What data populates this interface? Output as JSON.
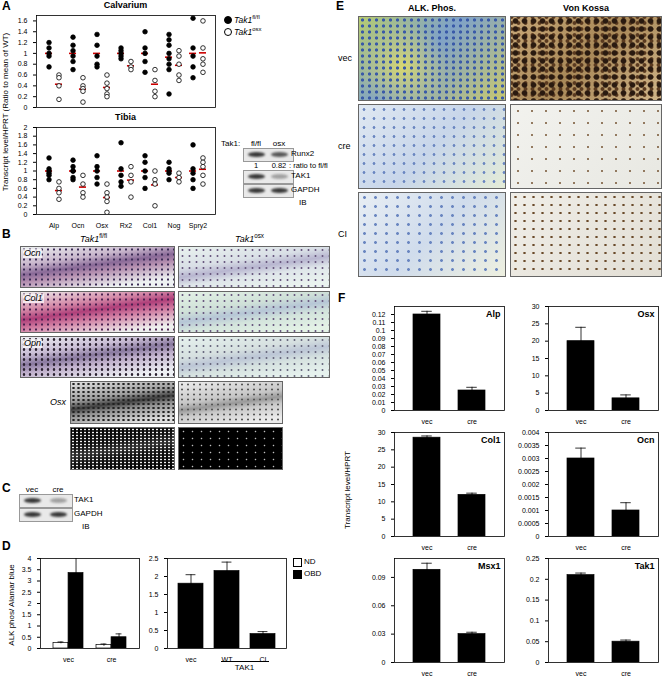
{
  "chart_data": [
    {
      "type": "scatter",
      "title": "Calvarium",
      "y_label": "Transcript level/HPRT (Ratio to mean of WT)",
      "categories": [
        "Alp",
        "Ocn",
        "Osx",
        "Rx2",
        "Col1",
        "Nog",
        "Spry2"
      ],
      "series": [
        {
          "name": "Tak1fl/fl",
          "color": "#000000",
          "marker": "filled",
          "values": [
            [
              1.2,
              1.1,
              1.0,
              0.95,
              0.75
            ],
            [
              1.3,
              1.15,
              1.05,
              0.95,
              0.85,
              0.7
            ],
            [
              1.35,
              1.15,
              0.95,
              0.8,
              0.75
            ],
            [
              1.1,
              1.05,
              1.0,
              0.95,
              0.9
            ],
            [
              1.4,
              1.1,
              1.0,
              0.85,
              0.65
            ],
            [
              1.35,
              1.25,
              1.15,
              1.0,
              0.9,
              0.8,
              0.7,
              0.25
            ],
            [
              1.65,
              1.1,
              0.95,
              0.75,
              0.55
            ]
          ],
          "means": [
            1,
            1,
            1,
            1,
            1,
            0.93,
            1
          ]
        },
        {
          "name": "Tak1osx",
          "color": "#000000",
          "marker": "open",
          "values": [
            [
              0.6,
              0.55,
              0.4,
              0.15
            ],
            [
              0.55,
              0.4,
              0.35,
              0.3,
              0.1
            ],
            [
              0.6,
              0.45,
              0.35,
              0.25,
              0.2
            ],
            [
              0.85,
              0.75,
              0.7
            ],
            [
              0.7,
              0.5,
              0.3,
              0.2
            ],
            [
              1.05,
              0.95,
              0.8,
              0.6,
              0.5
            ],
            [
              1.6,
              1.1,
              0.9,
              0.8,
              0.65
            ]
          ],
          "means": [
            0.43,
            0.34,
            0.37,
            0.77,
            0.43,
            0.78,
            1.01
          ]
        }
      ],
      "ylim": [
        0,
        1.7
      ],
      "yticks": [
        0,
        0.2,
        0.4,
        0.6,
        0.8,
        1,
        1.2,
        1.4,
        1.6
      ],
      "tick_labels": "y",
      "legend": "top-right"
    },
    {
      "type": "scatter",
      "title": "Tibia",
      "categories": [
        "Alp",
        "Ocn",
        "Osx",
        "Rx2",
        "Col1",
        "Nog",
        "Spry2"
      ],
      "series": [
        {
          "name": "Tak1fl/fl",
          "color": "#000000",
          "marker": "filled",
          "values": [
            [
              1.3,
              1.05,
              1.0,
              0.95,
              0.9,
              0.8
            ],
            [
              1.25,
              1.1,
              1.0,
              1.0,
              0.85,
              0.8
            ],
            [
              1.35,
              1.1,
              1.0,
              0.85,
              0.7
            ],
            [
              1.65,
              1.05,
              0.9,
              0.75,
              0.65
            ],
            [
              1.35,
              1.2,
              1.0,
              0.85,
              0.6
            ],
            [
              1.2,
              1.05,
              1.0,
              0.95,
              0.8
            ],
            [
              1.6,
              1.05,
              0.95,
              0.8,
              0.6
            ]
          ],
          "means": [
            1,
            1,
            1,
            1,
            1,
            1,
            1
          ]
        },
        {
          "name": "Tak1osx",
          "color": "#000000",
          "marker": "open",
          "values": [
            [
              0.75,
              0.6,
              0.5,
              0.35
            ],
            [
              0.9,
              0.7,
              0.5,
              0.4
            ],
            [
              0.7,
              0.5,
              0.4,
              0.3,
              0.05
            ],
            [
              1.1,
              0.9,
              0.75,
              0.4
            ],
            [
              1.0,
              0.8,
              0.7,
              0.2
            ],
            [
              0.95,
              0.85,
              0.75
            ],
            [
              1.3,
              1.2,
              1.1,
              0.9,
              0.7
            ]
          ],
          "means": [
            0.55,
            0.63,
            0.39,
            0.79,
            0.68,
            0.85,
            1.04
          ]
        }
      ],
      "ylim": [
        0,
        2
      ],
      "yticks": [
        0,
        0.2,
        0.4,
        0.6,
        0.8,
        1,
        1.2,
        1.4,
        1.6,
        1.8,
        2
      ]
    },
    {
      "type": "bar",
      "y_label": "ALK phos/ Alamar blue",
      "categories": [
        "vec",
        "cre"
      ],
      "series": [
        {
          "name": "ND",
          "color": "#ffffff",
          "values": [
            0.25,
            0.15
          ],
          "errors": [
            0.04,
            0.05
          ]
        },
        {
          "name": "OBD",
          "color": "#000000",
          "values": [
            3.35,
            0.5
          ],
          "errors": [
            0.7,
            0.15
          ]
        }
      ],
      "ylim": [
        0,
        4
      ],
      "yticks": [
        0,
        0.5,
        1,
        1.5,
        2,
        2.5,
        3,
        3.5,
        4
      ],
      "legend": "top-right"
    },
    {
      "type": "bar",
      "categories": [
        "vec",
        "WT",
        "CI"
      ],
      "x_group": {
        "label": "TAK1",
        "categories": [
          "WT",
          "CI"
        ]
      },
      "color": "#000000",
      "values": [
        1.8,
        2.15,
        0.4
      ],
      "errors": [
        0.25,
        0.25,
        0.07
      ],
      "ylim": [
        0,
        2.5
      ],
      "yticks": [
        0,
        0.5,
        1,
        1.5,
        2,
        2.5
      ]
    },
    {
      "type": "bar",
      "title": "Alp",
      "categories": [
        "vec",
        "cre"
      ],
      "color": "#000000",
      "values": [
        0.12,
        0.025
      ],
      "errors": [
        0.004,
        0.004
      ],
      "ylim": [
        0,
        0.13
      ],
      "yticks": [
        0,
        0.01,
        0.02,
        0.03,
        0.04,
        0.05,
        0.06,
        0.07,
        0.08,
        0.09,
        0.1,
        0.11,
        0.12
      ]
    },
    {
      "type": "bar",
      "title": "Osx",
      "categories": [
        "vec",
        "cre"
      ],
      "color": "#000000",
      "values": [
        20,
        3.5
      ],
      "errors": [
        4,
        1
      ],
      "ylim": [
        0,
        30
      ],
      "yticks": [
        0,
        5,
        10,
        15,
        20,
        25,
        30
      ]
    },
    {
      "type": "bar",
      "title": "Col1",
      "categories": [
        "vec",
        "cre"
      ],
      "color": "#000000",
      "values": [
        28.5,
        12
      ],
      "errors": [
        0.5,
        0.5
      ],
      "ylim": [
        0,
        30
      ],
      "yticks": [
        0,
        5,
        10,
        15,
        20,
        25,
        30
      ]
    },
    {
      "type": "bar",
      "title": "Ocn",
      "categories": [
        "vec",
        "cre"
      ],
      "color": "#000000",
      "values": [
        0.003,
        0.001
      ],
      "errors": [
        0.0004,
        0.0003
      ],
      "ylim": [
        0,
        0.004
      ],
      "yticks": [
        0,
        0.0005,
        0.001,
        0.0015,
        0.002,
        0.0025,
        0.003,
        0.0035,
        0.004
      ]
    },
    {
      "type": "bar",
      "title": "Msx1",
      "categories": [
        "vec",
        "cre"
      ],
      "color": "#000000",
      "values": [
        0.098,
        0.03
      ],
      "errors": [
        0.007,
        0.002
      ],
      "ylim": [
        0,
        0.11
      ],
      "yticks": [
        0,
        0.03,
        0.06,
        0.09
      ]
    },
    {
      "type": "bar",
      "title": "Tak1",
      "categories": [
        "vec",
        "cre"
      ],
      "color": "#000000",
      "values": [
        0.21,
        0.05
      ],
      "errors": [
        0.005,
        0.004
      ],
      "ylim": [
        0,
        0.25
      ],
      "yticks": [
        0,
        0.05,
        0.1,
        0.15,
        0.2,
        0.25
      ]
    }
  ],
  "figure": {
    "A": {
      "letter": "A",
      "blot": {
        "title": "Tak1:",
        "lanes": [
          "fl/fl",
          "osx"
        ],
        "bands": [
          "Runx2",
          "TAK1",
          "GAPDH"
        ],
        "ratio_values": [
          1,
          0.82
        ],
        "ratio_label": ": ratio to fl/fl",
        "method": "IB"
      }
    },
    "B": {
      "letter": "B",
      "columns": [
        "Tak1fl/fl",
        "Tak1osx"
      ],
      "rows": [
        "Ocn",
        "Col1",
        "Opn",
        "Osx"
      ]
    },
    "C": {
      "letter": "C",
      "blot": {
        "lanes": [
          "vec",
          "cre"
        ],
        "bands": [
          "TAK1",
          "GAPDH"
        ],
        "method": "IB"
      }
    },
    "D": {
      "letter": "D"
    },
    "E": {
      "letter": "E",
      "columns": [
        "ALK. Phos.",
        "Von Kossa"
      ],
      "rows": [
        "vec",
        "cre",
        "CI"
      ]
    },
    "F": {
      "letter": "F",
      "y_label": "Transcript level/HPRT"
    }
  }
}
